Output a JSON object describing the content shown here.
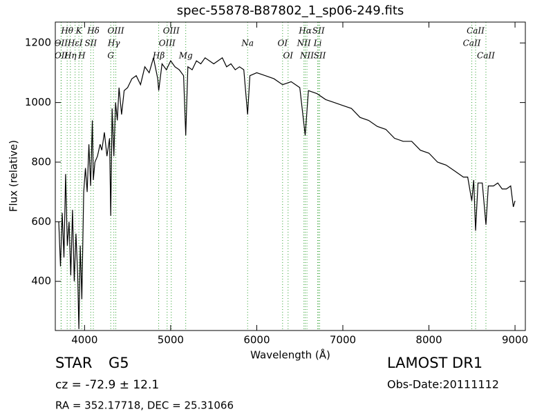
{
  "chart_data": {
    "type": "line",
    "title": "spec-55878-B87802_1_sp06-249.fits",
    "x_label": "Wavelength (Å)",
    "y_label": "Flux (relative)",
    "xlim": [
      3660,
      9120
    ],
    "ylim": [
      235,
      1270
    ],
    "xticks": [
      4000,
      5000,
      6000,
      7000,
      8000,
      9000
    ],
    "yticks": [
      400,
      600,
      800,
      1000,
      1200
    ],
    "grid": false,
    "series": [
      {
        "color": "#000000",
        "x": [
          3700,
          3720,
          3740,
          3760,
          3780,
          3800,
          3820,
          3840,
          3860,
          3880,
          3900,
          3920,
          3934,
          3950,
          3968,
          3990,
          4010,
          4030,
          4050,
          4070,
          4090,
          4102,
          4120,
          4150,
          4180,
          4200,
          4230,
          4260,
          4290,
          4304,
          4320,
          4340,
          4360,
          4380,
          4400,
          4430,
          4460,
          4500,
          4550,
          4600,
          4650,
          4700,
          4750,
          4800,
          4850,
          4861,
          4900,
          4950,
          5000,
          5050,
          5100,
          5150,
          5175,
          5200,
          5250,
          5300,
          5350,
          5400,
          5450,
          5500,
          5550,
          5600,
          5650,
          5700,
          5750,
          5800,
          5850,
          5894,
          5920,
          6000,
          6100,
          6200,
          6300,
          6400,
          6500,
          6563,
          6600,
          6700,
          6800,
          6900,
          7000,
          7100,
          7200,
          7300,
          7400,
          7500,
          7600,
          7700,
          7800,
          7900,
          8000,
          8100,
          8200,
          8300,
          8400,
          8450,
          8498,
          8520,
          8542,
          8570,
          8620,
          8662,
          8690,
          8750,
          8800,
          8850,
          8900,
          8950,
          8980,
          9000
        ],
        "values": [
          600,
          450,
          630,
          480,
          760,
          520,
          600,
          420,
          640,
          400,
          560,
          420,
          240,
          520,
          340,
          700,
          780,
          700,
          860,
          720,
          940,
          740,
          800,
          820,
          860,
          840,
          900,
          820,
          880,
          620,
          980,
          820,
          1000,
          940,
          1050,
          960,
          1040,
          1050,
          1080,
          1090,
          1060,
          1120,
          1100,
          1150,
          1080,
          1040,
          1130,
          1110,
          1140,
          1120,
          1110,
          1090,
          890,
          1120,
          1110,
          1140,
          1130,
          1150,
          1140,
          1130,
          1140,
          1150,
          1120,
          1130,
          1110,
          1120,
          1110,
          960,
          1090,
          1100,
          1090,
          1080,
          1060,
          1070,
          1050,
          890,
          1040,
          1030,
          1010,
          1000,
          990,
          980,
          950,
          940,
          920,
          910,
          880,
          870,
          870,
          840,
          830,
          800,
          790,
          770,
          750,
          750,
          670,
          740,
          570,
          730,
          730,
          590,
          720,
          720,
          730,
          710,
          710,
          720,
          650,
          670
        ]
      }
    ],
    "line_color": "#2ca02c",
    "line_markers": [
      [
        {
          "label": "Hθ",
          "wavelength": 3798
        },
        {
          "label": "K",
          "wavelength": 3934
        },
        {
          "label": "Hδ",
          "wavelength": 4102
        },
        {
          "label": "OIII",
          "wavelength": 4363
        },
        {
          "label": "OIII",
          "wavelength": 5007
        },
        {
          "label": "Hα",
          "wavelength": 6563
        },
        {
          "label": "SII",
          "wavelength": 6717
        },
        {
          "label": "CaII",
          "wavelength": 8542
        }
      ],
      [
        {
          "label": "OII",
          "wavelength": 3727
        },
        {
          "label": "HεI",
          "wavelength": 3890
        },
        {
          "label": "SII",
          "wavelength": 4072
        },
        {
          "label": "Hγ",
          "wavelength": 4340
        },
        {
          "label": "OIII",
          "wavelength": 4959
        },
        {
          "label": "Na",
          "wavelength": 5894
        },
        {
          "label": "OI",
          "wavelength": 6300
        },
        {
          "label": "NII",
          "wavelength": 6548
        },
        {
          "label": "Li",
          "wavelength": 6708
        },
        {
          "label": "CaII",
          "wavelength": 8498
        }
      ],
      [
        {
          "label": "OII",
          "wavelength": 3729
        },
        {
          "label": "Hη",
          "wavelength": 3835
        },
        {
          "label": "H",
          "wavelength": 3968
        },
        {
          "label": "G",
          "wavelength": 4304
        },
        {
          "label": "Hβ",
          "wavelength": 4861
        },
        {
          "label": "Mg",
          "wavelength": 5175
        },
        {
          "label": "OI",
          "wavelength": 6364
        },
        {
          "label": "NII",
          "wavelength": 6583
        },
        {
          "label": "SII",
          "wavelength": 6731
        },
        {
          "label": "CaII",
          "wavelength": 8662
        }
      ]
    ]
  },
  "info": {
    "class": "STAR",
    "subclass": "G5",
    "cz": "cz = -72.9 ± 12.1",
    "coords": "RA = 352.17718, DEC = 25.31066",
    "survey": "LAMOST DR1",
    "obs_date": "Obs-Date:20111112"
  }
}
